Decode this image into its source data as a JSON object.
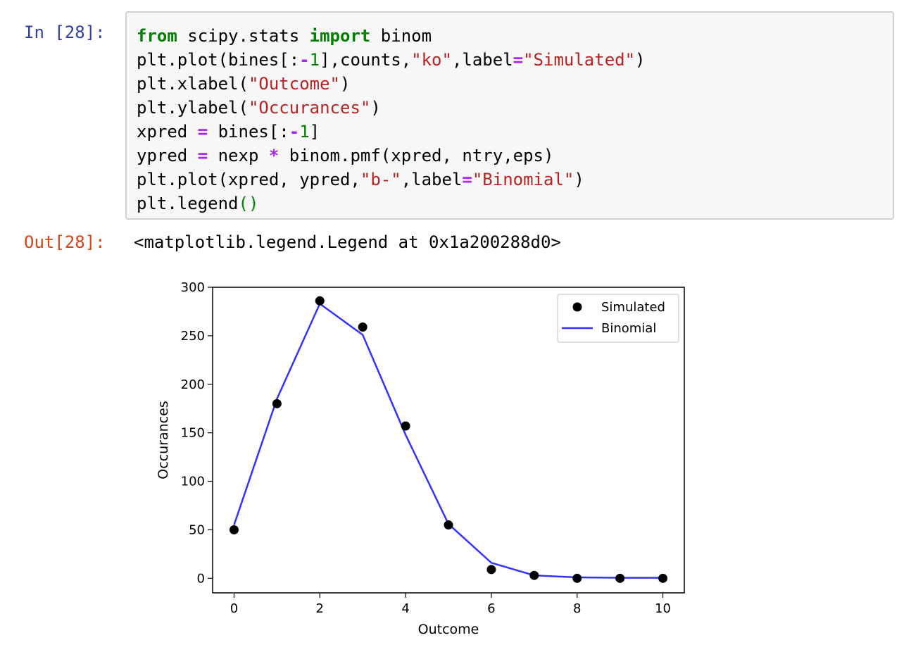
{
  "input_cell": {
    "prompt": "In [28]:",
    "lines": [
      [
        {
          "t": "from",
          "c": "kw"
        },
        {
          "t": " scipy.stats "
        },
        {
          "t": "import",
          "c": "kw"
        },
        {
          "t": " binom"
        }
      ],
      [
        {
          "t": "plt.plot(bines[:"
        },
        {
          "t": "-",
          "c": "op"
        },
        {
          "t": "1",
          "c": "num"
        },
        {
          "t": "],counts,"
        },
        {
          "t": "\"ko\"",
          "c": "str"
        },
        {
          "t": ",label"
        },
        {
          "t": "=",
          "c": "op"
        },
        {
          "t": "\"Simulated\"",
          "c": "str"
        },
        {
          "t": ")"
        }
      ],
      [
        {
          "t": "plt.xlabel("
        },
        {
          "t": "\"Outcome\"",
          "c": "str"
        },
        {
          "t": ")"
        }
      ],
      [
        {
          "t": "plt.ylabel("
        },
        {
          "t": "\"Occurances\"",
          "c": "str"
        },
        {
          "t": ")"
        }
      ],
      [
        {
          "t": "xpred "
        },
        {
          "t": "=",
          "c": "op"
        },
        {
          "t": " bines[:"
        },
        {
          "t": "-",
          "c": "op"
        },
        {
          "t": "1",
          "c": "num"
        },
        {
          "t": "]"
        }
      ],
      [
        {
          "t": "ypred "
        },
        {
          "t": "=",
          "c": "op"
        },
        {
          "t": " nexp "
        },
        {
          "t": "*",
          "c": "op"
        },
        {
          "t": " binom.pmf(xpred, ntry,eps)"
        }
      ],
      [
        {
          "t": "plt.plot(xpred, ypred,"
        },
        {
          "t": "\"b-\"",
          "c": "str"
        },
        {
          "t": ",label"
        },
        {
          "t": "=",
          "c": "op"
        },
        {
          "t": "\"Binomial\"",
          "c": "str"
        },
        {
          "t": ")"
        }
      ],
      [
        {
          "t": "plt.legend"
        },
        {
          "t": "()",
          "c": "paren"
        }
      ]
    ]
  },
  "output_cell": {
    "prompt": "Out[28]:",
    "text": "<matplotlib.legend.Legend at 0x1a200288d0>"
  },
  "chart_data": {
    "type": "line",
    "title": "",
    "xlabel": "Outcome",
    "ylabel": "Occurances",
    "xlim": [
      -0.5,
      10.5
    ],
    "ylim": [
      -15,
      300
    ],
    "xticks": [
      0,
      2,
      4,
      6,
      8,
      10
    ],
    "yticks": [
      0,
      50,
      100,
      150,
      200,
      250,
      300
    ],
    "grid": false,
    "legend_position": "top-right",
    "series": [
      {
        "name": "Simulated",
        "kind": "scatter",
        "color": "#000000",
        "x": [
          0,
          1,
          2,
          3,
          4,
          5,
          6,
          7,
          8,
          9,
          10
        ],
        "y": [
          50,
          180,
          286,
          259,
          157,
          55,
          9,
          3,
          0,
          0,
          0
        ]
      },
      {
        "name": "Binomial",
        "kind": "line",
        "color": "#3333ff",
        "x": [
          0,
          1,
          2,
          3,
          4,
          5,
          6,
          7,
          8,
          9,
          10
        ],
        "y": [
          55,
          185,
          283,
          251,
          148,
          56,
          16,
          3,
          1,
          0.5,
          0.5
        ]
      }
    ]
  }
}
